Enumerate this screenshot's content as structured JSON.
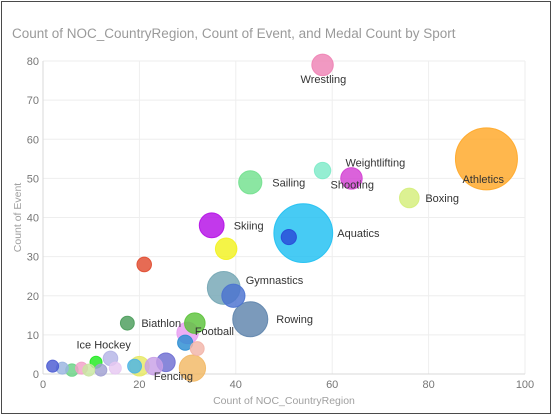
{
  "chart_data": {
    "type": "scatter",
    "subtype": "bubble",
    "title": "Count of NOC_CountryRegion, Count of Event, and Medal Count by Sport",
    "xlabel": "Count of NOC_CountryRegion",
    "ylabel": "Count of Event",
    "xlim": [
      0,
      100
    ],
    "ylim": [
      0,
      80
    ],
    "xticks": [
      "0",
      "20",
      "40",
      "60",
      "80",
      "100"
    ],
    "yticks": [
      "0",
      "10",
      "20",
      "30",
      "40",
      "50",
      "60",
      "70",
      "80"
    ],
    "grid": true,
    "points": [
      {
        "sport": "Wrestling",
        "label": "Wrestling",
        "x": 58,
        "y": 79,
        "size": 120,
        "color": "#ee82b4"
      },
      {
        "sport": "Athletics",
        "label": "Athletics",
        "x": 92,
        "y": 55,
        "size": 1000,
        "color": "#ffa726"
      },
      {
        "sport": "Boxing",
        "label": "Boxing",
        "x": 76,
        "y": 45,
        "size": 100,
        "color": "#d4ee7a"
      },
      {
        "sport": "Weightlifting",
        "label": "Weightlifting",
        "x": 64,
        "y": 50,
        "size": 120,
        "color": "#d33fd3"
      },
      {
        "sport": "Shooting",
        "label": "Shooting",
        "x": 58,
        "y": 52,
        "size": 70,
        "color": "#7eeac8"
      },
      {
        "sport": "Sailing",
        "label": "Sailing",
        "x": 43,
        "y": 49,
        "size": 140,
        "color": "#72e08e"
      },
      {
        "sport": "Aquatics",
        "label": "Aquatics",
        "x": 54,
        "y": 36,
        "size": 900,
        "color": "#1ec0f2"
      },
      {
        "sport": "Aquatics-inner",
        "label": "",
        "x": 51,
        "y": 35,
        "size": 60,
        "color": "#2848d8"
      },
      {
        "sport": "Skiing",
        "label": "Skiing",
        "x": 35,
        "y": 38,
        "size": 160,
        "color": "#b40ee6"
      },
      {
        "sport": "Skiing-2",
        "label": "",
        "x": 38,
        "y": 32,
        "size": 120,
        "color": "#f2f21e"
      },
      {
        "sport": "Gymnastics",
        "label": "Gymnastics",
        "x": 37.5,
        "y": 22,
        "size": 280,
        "color": "#74a6b4"
      },
      {
        "sport": "Gymnastics-2",
        "label": "",
        "x": 39.5,
        "y": 20,
        "size": 140,
        "color": "#4a72d0"
      },
      {
        "sport": "Rowing",
        "label": "Rowing",
        "x": 43,
        "y": 14,
        "size": 320,
        "color": "#5e84ac"
      },
      {
        "sport": "Red",
        "label": "",
        "x": 21,
        "y": 28,
        "size": 55,
        "color": "#e04a2e"
      },
      {
        "sport": "Biathlon",
        "label": "Biathlon",
        "x": 17.5,
        "y": 13,
        "size": 50,
        "color": "#4a9c5a"
      },
      {
        "sport": "Football",
        "label": "Football",
        "x": 31.5,
        "y": 13,
        "size": 110,
        "color": "#5cc23a"
      },
      {
        "sport": "Football-2",
        "label": "",
        "x": 30,
        "y": 10.5,
        "size": 120,
        "color": "#e89cf2"
      },
      {
        "sport": "Football-3",
        "label": "",
        "x": 29.5,
        "y": 8,
        "size": 60,
        "color": "#2a8cd2"
      },
      {
        "sport": "Pink",
        "label": "",
        "x": 32,
        "y": 6.5,
        "size": 50,
        "color": "#f2b4a8"
      },
      {
        "sport": "Orange",
        "label": "",
        "x": 31,
        "y": 1.5,
        "size": 180,
        "color": "#f2b864"
      },
      {
        "sport": "Ice Hockey",
        "label": "Ice Hockey",
        "x": 14,
        "y": 4,
        "size": 55,
        "color": "#b4b4e6"
      },
      {
        "sport": "Fencing",
        "label": "Fencing",
        "x": 23,
        "y": 2,
        "size": 80,
        "color": "#c8a0e6"
      },
      {
        "sport": "Fencing-2",
        "label": "",
        "x": 25.5,
        "y": 3,
        "size": 90,
        "color": "#6e6ed2"
      },
      {
        "sport": "Yellow-low",
        "label": "",
        "x": 20,
        "y": 2,
        "size": 100,
        "color": "#e6e864"
      },
      {
        "sport": "Blue-low",
        "label": "",
        "x": 19,
        "y": 2,
        "size": 50,
        "color": "#4ab4e6"
      },
      {
        "sport": "Green-low",
        "label": "",
        "x": 11,
        "y": 3,
        "size": 30,
        "color": "#1eea1e"
      },
      {
        "sport": "Cluster-1",
        "label": "",
        "x": 2,
        "y": 2,
        "size": 25,
        "color": "#4a5ad2"
      },
      {
        "sport": "Cluster-2",
        "label": "",
        "x": 4,
        "y": 1.5,
        "size": 35,
        "color": "#9ab4e0"
      },
      {
        "sport": "Cluster-3",
        "label": "",
        "x": 6,
        "y": 1,
        "size": 40,
        "color": "#6ad286"
      },
      {
        "sport": "Cluster-4",
        "label": "",
        "x": 8,
        "y": 1.5,
        "size": 30,
        "color": "#f2a0c8"
      },
      {
        "sport": "Cluster-5",
        "label": "",
        "x": 9.5,
        "y": 1,
        "size": 25,
        "color": "#c8e6a0"
      },
      {
        "sport": "Cluster-6",
        "label": "",
        "x": 12,
        "y": 1,
        "size": 30,
        "color": "#a0a0d2"
      },
      {
        "sport": "Cluster-7",
        "label": "",
        "x": 15,
        "y": 1.5,
        "size": 35,
        "color": "#e6c8f2"
      }
    ]
  },
  "colors": {
    "grid": "#eeeeee",
    "axis": "#d9d9d9",
    "bubble_stroke": "#ffffff"
  }
}
